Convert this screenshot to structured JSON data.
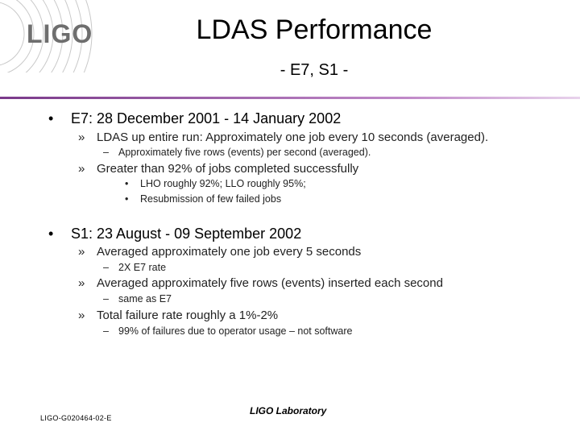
{
  "logo": {
    "text": "LIGO"
  },
  "title": "LDAS Performance",
  "subtitle": "- E7, S1 -",
  "items": {
    "e7": {
      "bullet": "•",
      "text": "E7: 28 December 2001 - 14 January 2002",
      "sub1": {
        "bullet": "»",
        "text": "LDAS up entire run: Approximately one job every 10 seconds (averaged)."
      },
      "sub1a": {
        "bullet": "–",
        "text": "Approximately five rows  (events) per second (averaged)."
      },
      "sub2": {
        "bullet": "»",
        "text": "Greater than 92% of jobs completed successfully"
      },
      "sub2a": {
        "bullet": "•",
        "text": "LHO roughly 92%; LLO roughly 95%;"
      },
      "sub2b": {
        "bullet": "•",
        "text": "Resubmission of few failed jobs"
      }
    },
    "s1": {
      "bullet": "•",
      "text": "S1: 23 August - 09 September 2002",
      "sub1": {
        "bullet": "»",
        "text": "Averaged approximately one job every 5 seconds"
      },
      "sub1a": {
        "bullet": "–",
        "text": "2X E7 rate"
      },
      "sub2": {
        "bullet": "»",
        "text": "Averaged approximately five rows (events) inserted each second"
      },
      "sub2a": {
        "bullet": "–",
        "text": "same as E7"
      },
      "sub3": {
        "bullet": "»",
        "text": "Total failure rate roughly a 1%-2%"
      },
      "sub3a": {
        "bullet": "–",
        "text": "99% of failures due to operator usage – not software"
      }
    }
  },
  "footer": {
    "doc_id": "LIGO-G020464-02-E",
    "lab": "LIGO Laboratory"
  },
  "colors": {
    "rule": "#9b59a8",
    "logo": "#6e6e6e"
  }
}
